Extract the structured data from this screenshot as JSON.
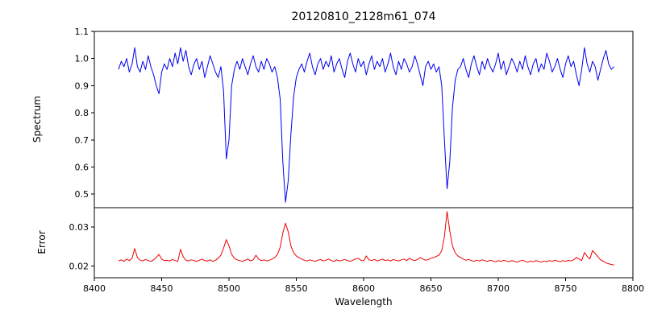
{
  "chart_data": {
    "type": "line",
    "title": "20120810_2128m61_074",
    "xlabel": "Wavelength",
    "xlim": [
      8400,
      8800
    ],
    "xticks": [
      "8400",
      "8450",
      "8500",
      "8550",
      "8600",
      "8650",
      "8700",
      "8750",
      "8800"
    ],
    "x_start": 8418,
    "x_step": 2,
    "grid": false,
    "legend": "none",
    "series": [
      {
        "name": "spectrum",
        "ylabel": "Spectrum",
        "color": "#0000ee",
        "ylim": [
          0.45,
          1.1
        ],
        "yticks": [
          "0.5",
          "0.6",
          "0.7",
          "0.8",
          "0.9",
          "1.0",
          "1.1"
        ],
        "absorption_line_centers": [
          8498,
          8542,
          8662
        ],
        "values": [
          0.96,
          0.99,
          0.97,
          1.0,
          0.95,
          0.98,
          1.04,
          0.97,
          0.95,
          0.99,
          0.96,
          1.01,
          0.97,
          0.94,
          0.9,
          0.87,
          0.95,
          0.98,
          0.96,
          1.0,
          0.97,
          1.02,
          0.98,
          1.04,
          0.99,
          1.03,
          0.97,
          0.94,
          0.98,
          1.0,
          0.96,
          0.99,
          0.93,
          0.97,
          1.01,
          0.98,
          0.95,
          0.93,
          0.97,
          0.88,
          0.63,
          0.7,
          0.9,
          0.96,
          0.99,
          0.96,
          1.0,
          0.97,
          0.94,
          0.98,
          1.01,
          0.97,
          0.95,
          0.99,
          0.96,
          1.0,
          0.98,
          0.95,
          0.97,
          0.93,
          0.85,
          0.62,
          0.47,
          0.55,
          0.72,
          0.86,
          0.93,
          0.96,
          0.98,
          0.95,
          0.99,
          1.02,
          0.97,
          0.94,
          0.98,
          1.0,
          0.96,
          0.99,
          0.97,
          1.01,
          0.95,
          0.98,
          1.0,
          0.96,
          0.93,
          0.99,
          1.02,
          0.98,
          0.95,
          1.0,
          0.97,
          0.99,
          0.94,
          0.98,
          1.01,
          0.96,
          0.99,
          0.97,
          1.0,
          0.95,
          0.98,
          1.02,
          0.97,
          0.94,
          0.99,
          0.96,
          1.0,
          0.98,
          0.95,
          0.97,
          1.01,
          0.98,
          0.94,
          0.9,
          0.97,
          0.99,
          0.96,
          0.98,
          0.95,
          0.97,
          0.9,
          0.7,
          0.52,
          0.62,
          0.82,
          0.92,
          0.96,
          0.97,
          1.0,
          0.96,
          0.93,
          0.98,
          1.01,
          0.97,
          0.94,
          0.99,
          0.96,
          1.0,
          0.97,
          0.95,
          0.98,
          1.02,
          0.96,
          0.99,
          0.94,
          0.97,
          1.0,
          0.98,
          0.95,
          0.99,
          0.96,
          1.01,
          0.97,
          0.94,
          0.98,
          1.0,
          0.95,
          0.98,
          0.96,
          1.02,
          0.99,
          0.95,
          0.97,
          1.0,
          0.96,
          0.93,
          0.98,
          1.01,
          0.97,
          0.99,
          0.94,
          0.9,
          0.96,
          1.04,
          0.98,
          0.95,
          0.99,
          0.97,
          0.92,
          0.96,
          1.0,
          1.03,
          0.98,
          0.96,
          0.97
        ]
      },
      {
        "name": "error",
        "ylabel": "Error",
        "color": "#ee0000",
        "ylim": [
          0.017,
          0.035
        ],
        "yticks": [
          "0.02",
          "0.03"
        ],
        "peak_centers": [
          8498,
          8542,
          8662
        ],
        "values": [
          0.0213,
          0.0216,
          0.0212,
          0.0218,
          0.0214,
          0.022,
          0.0245,
          0.0222,
          0.0215,
          0.0213,
          0.0217,
          0.0214,
          0.0212,
          0.0216,
          0.0222,
          0.023,
          0.0218,
          0.0214,
          0.0215,
          0.0213,
          0.0217,
          0.0214,
          0.0212,
          0.0243,
          0.0224,
          0.0215,
          0.0213,
          0.0216,
          0.0214,
          0.0212,
          0.0215,
          0.0218,
          0.0214,
          0.0213,
          0.0216,
          0.0212,
          0.0215,
          0.022,
          0.0228,
          0.0246,
          0.0268,
          0.0252,
          0.023,
          0.022,
          0.0216,
          0.0214,
          0.0212,
          0.0215,
          0.0218,
          0.0213,
          0.0216,
          0.0228,
          0.0218,
          0.0214,
          0.0216,
          0.0213,
          0.0215,
          0.0218,
          0.0222,
          0.023,
          0.0248,
          0.0285,
          0.031,
          0.0288,
          0.0252,
          0.0234,
          0.0226,
          0.0222,
          0.0218,
          0.0215,
          0.0213,
          0.0216,
          0.0214,
          0.0212,
          0.0215,
          0.0217,
          0.0213,
          0.0215,
          0.0218,
          0.0214,
          0.0212,
          0.0216,
          0.0213,
          0.0215,
          0.0217,
          0.0214,
          0.0212,
          0.0215,
          0.0218,
          0.022,
          0.0215,
          0.0213,
          0.0226,
          0.0216,
          0.0214,
          0.0217,
          0.0213,
          0.0215,
          0.0218,
          0.0214,
          0.0216,
          0.0213,
          0.0217,
          0.0215,
          0.0213,
          0.0216,
          0.0218,
          0.0214,
          0.022,
          0.0216,
          0.0214,
          0.0217,
          0.0222,
          0.0218,
          0.0215,
          0.0217,
          0.022,
          0.0222,
          0.0225,
          0.0228,
          0.024,
          0.0275,
          0.034,
          0.029,
          0.0252,
          0.0234,
          0.0226,
          0.0222,
          0.0218,
          0.0215,
          0.0217,
          0.0214,
          0.0212,
          0.0215,
          0.0213,
          0.0216,
          0.0214,
          0.0212,
          0.0215,
          0.0213,
          0.0211,
          0.0214,
          0.0212,
          0.0215,
          0.0213,
          0.0211,
          0.0214,
          0.0212,
          0.021,
          0.0213,
          0.0215,
          0.0212,
          0.021,
          0.0213,
          0.0211,
          0.0214,
          0.0212,
          0.021,
          0.0213,
          0.0211,
          0.0214,
          0.0212,
          0.0215,
          0.0213,
          0.0211,
          0.0214,
          0.0212,
          0.0215,
          0.0213,
          0.0216,
          0.0222,
          0.0218,
          0.0214,
          0.0235,
          0.0225,
          0.0218,
          0.024,
          0.0232,
          0.0224,
          0.0216,
          0.0212,
          0.0208,
          0.0206,
          0.0204,
          0.0203
        ]
      }
    ]
  }
}
